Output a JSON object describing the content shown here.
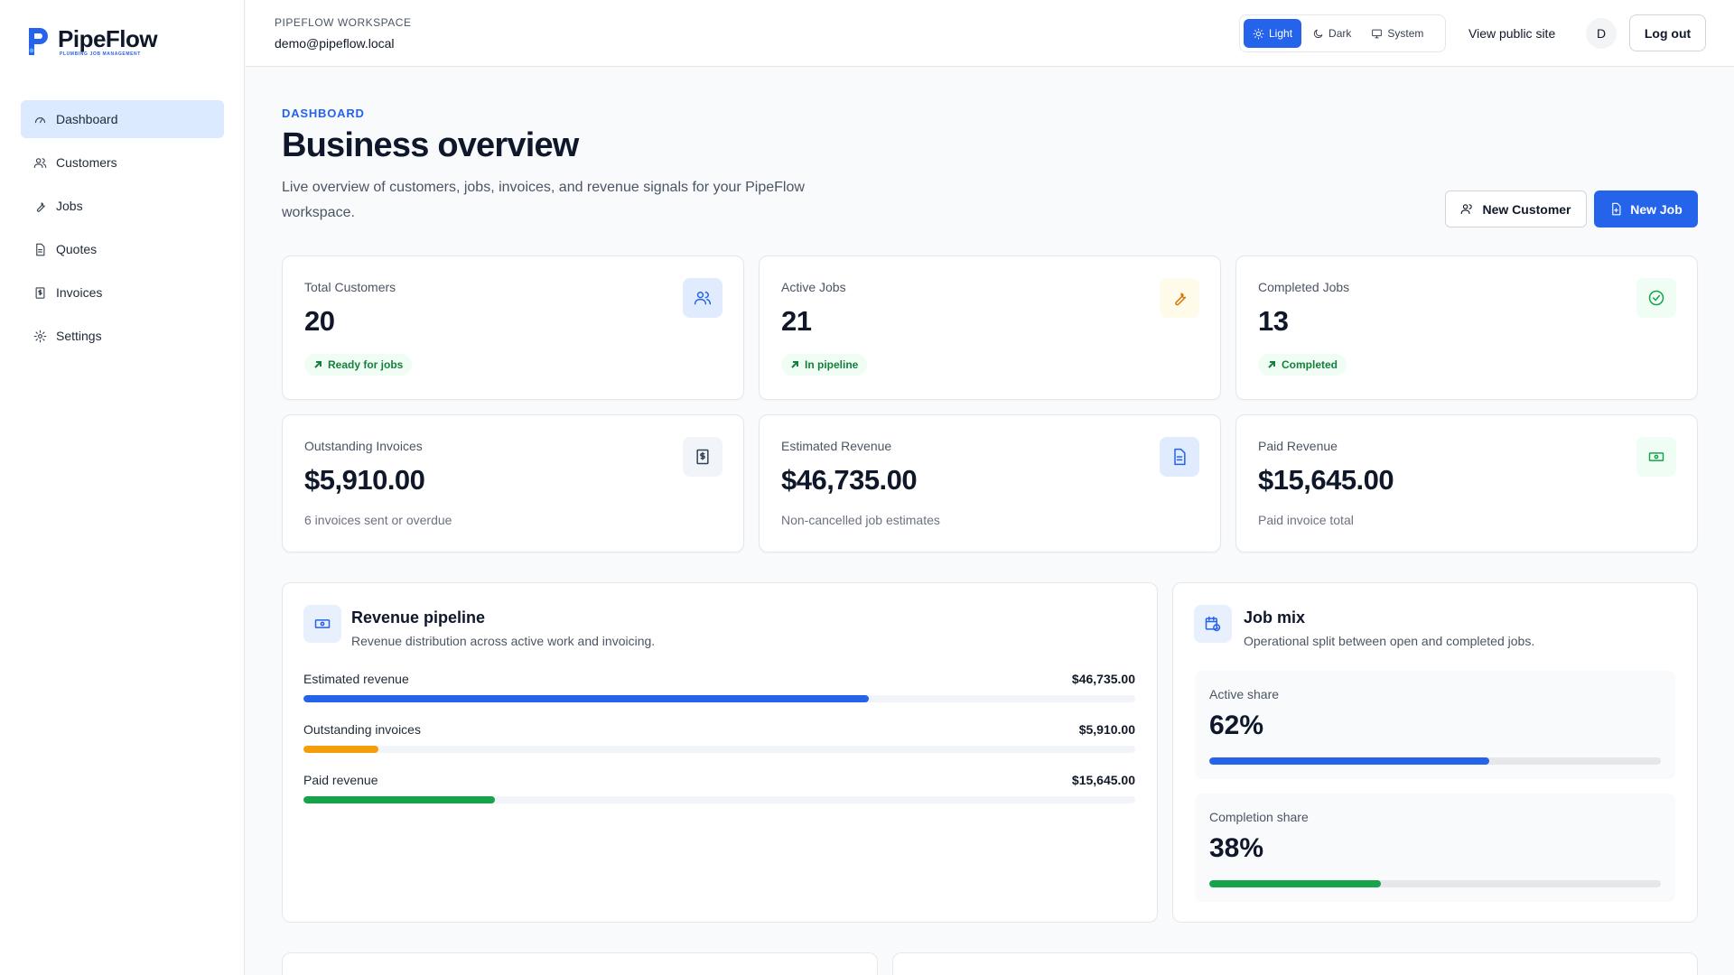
{
  "brand": {
    "name": "PipeFlow",
    "tagline": "PLUMBING JOB MANAGEMENT"
  },
  "sidebar": {
    "items": [
      {
        "label": "Dashboard",
        "icon": "gauge-icon",
        "active": true
      },
      {
        "label": "Customers",
        "icon": "users-icon"
      },
      {
        "label": "Jobs",
        "icon": "wrench-icon"
      },
      {
        "label": "Quotes",
        "icon": "document-icon"
      },
      {
        "label": "Invoices",
        "icon": "invoice-icon"
      },
      {
        "label": "Settings",
        "icon": "gear-icon"
      }
    ]
  },
  "topbar": {
    "workspace_label": "PIPEFLOW WORKSPACE",
    "email": "demo@pipeflow.local",
    "theme": {
      "light": "Light",
      "dark": "Dark",
      "system": "System",
      "selected": "Light"
    },
    "public_link": "View public site",
    "avatar_initial": "D",
    "logout": "Log out"
  },
  "header": {
    "eyebrow": "DASHBOARD",
    "title": "Business overview",
    "description": "Live overview of customers, jobs, invoices, and revenue signals for your PipeFlow workspace.",
    "new_customer": "New Customer",
    "new_job": "New Job"
  },
  "stats": {
    "total_customers": {
      "label": "Total Customers",
      "value": "20",
      "badge": "Ready for jobs"
    },
    "active_jobs": {
      "label": "Active Jobs",
      "value": "21",
      "badge": "In pipeline"
    },
    "completed_jobs": {
      "label": "Completed Jobs",
      "value": "13",
      "badge": "Completed"
    },
    "outstanding_invoices": {
      "label": "Outstanding Invoices",
      "value": "$5,910.00",
      "sub": "6 invoices sent or overdue"
    },
    "estimated_revenue": {
      "label": "Estimated Revenue",
      "value": "$46,735.00",
      "sub": "Non-cancelled job estimates"
    },
    "paid_revenue": {
      "label": "Paid Revenue",
      "value": "$15,645.00",
      "sub": "Paid invoice total"
    }
  },
  "pipeline": {
    "title": "Revenue pipeline",
    "subtitle": "Revenue distribution across active work and invoicing.",
    "rows": [
      {
        "label": "Estimated revenue",
        "amount": "$46,735.00",
        "fill": 0.68,
        "color": "#2563eb"
      },
      {
        "label": "Outstanding invoices",
        "amount": "$5,910.00",
        "fill": 0.09,
        "color": "#f59e0b"
      },
      {
        "label": "Paid revenue",
        "amount": "$15,645.00",
        "fill": 0.23,
        "color": "#16a34a"
      }
    ]
  },
  "job_mix": {
    "title": "Job mix",
    "subtitle": "Operational split between open and completed jobs.",
    "active": {
      "label": "Active share",
      "value": "62%",
      "fill": 0.62,
      "color": "#2563eb"
    },
    "completion": {
      "label": "Completion share",
      "value": "38%",
      "fill": 0.38,
      "color": "#16a34a"
    }
  },
  "colors": {
    "accent": "#2563eb",
    "success": "#16a34a",
    "warning": "#f59e0b"
  }
}
